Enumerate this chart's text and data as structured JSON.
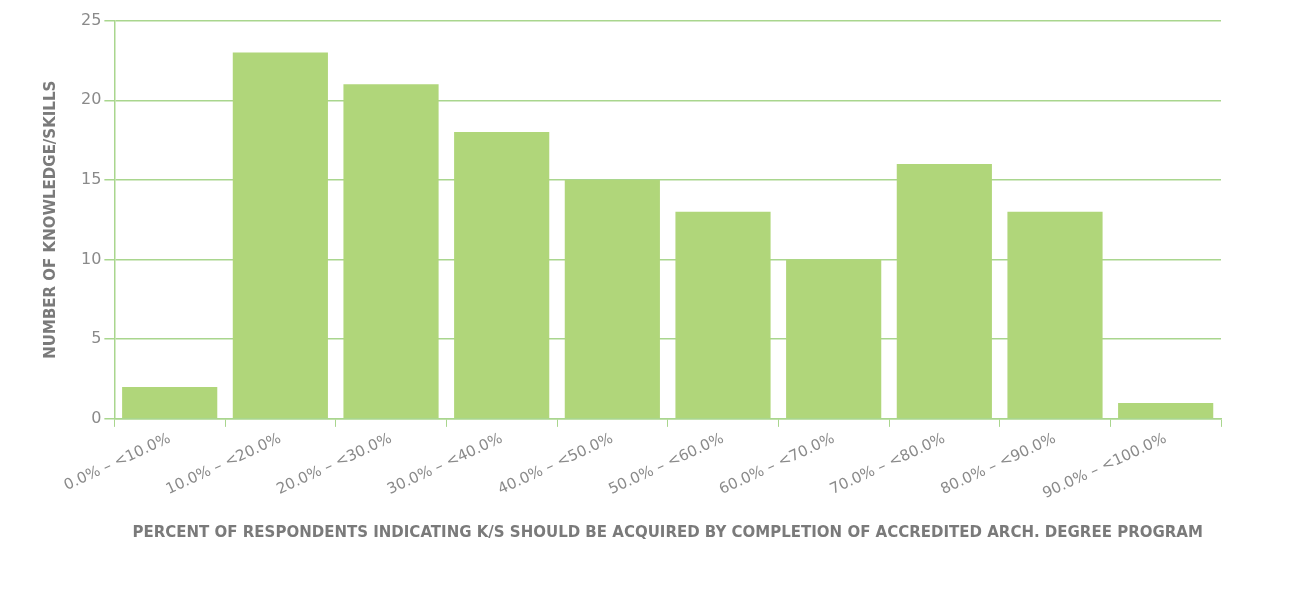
{
  "chart_data": {
    "type": "bar",
    "xlabel": "PERCENT OF RESPONDENTS INDICATING K/S SHOULD BE ACQUIRED BY COMPLETION OF ACCREDITED ARCH. DEGREE PROGRAM",
    "ylabel": "NUMBER OF KNOWLEDGE/SKILLS",
    "categories": [
      "0.0% – <10.0%",
      "10.0% – <20.0%",
      "20.0% – <30.0%",
      "30.0% – <40.0%",
      "40.0% – <50.0%",
      "50.0% – <60.0%",
      "60.0% – <70.0%",
      "70.0% – <80.0%",
      "80.0% – <90.0%",
      "90.0% – <100.0%"
    ],
    "values": [
      2,
      23,
      21,
      18,
      15,
      13,
      10,
      16,
      13,
      1
    ],
    "color": "#b0d67a",
    "ylim": [
      0,
      25
    ],
    "yticks": [
      0,
      5,
      10,
      15,
      20,
      25
    ],
    "grid": "y",
    "legend": false
  }
}
